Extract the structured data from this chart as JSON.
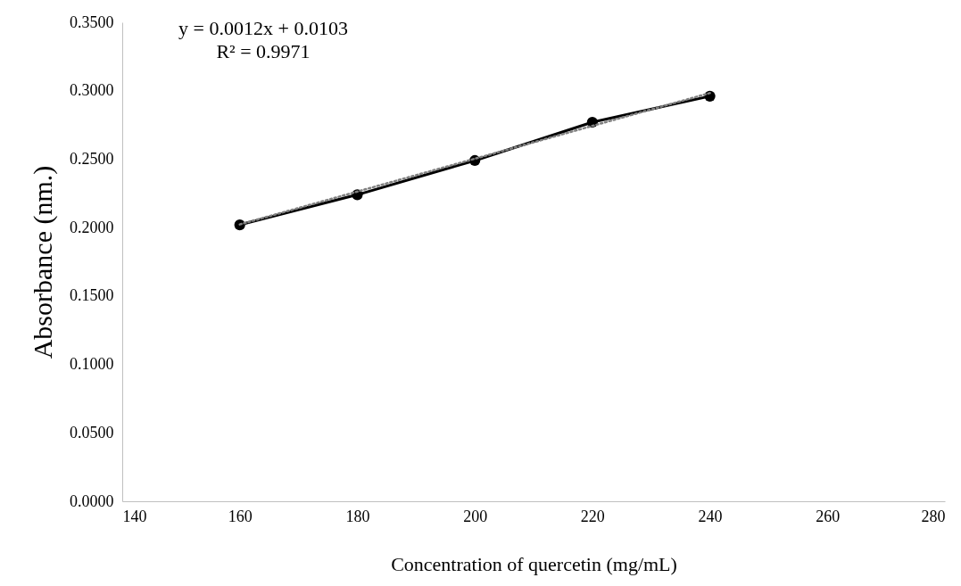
{
  "chart_data": {
    "type": "line",
    "xlabel": "Concentration of quercetin (mg/mL)",
    "ylabel": "Absorbance (nm.)",
    "annotations": [
      "y = 0.0012x + 0.0103",
      "R² = 0.9971"
    ],
    "x": [
      160,
      180,
      200,
      220,
      240
    ],
    "series": [
      {
        "color": "#000000",
        "values": [
          0.202,
          0.224,
          0.249,
          0.277,
          0.296
        ],
        "marker": "circle",
        "line_style": "solid"
      },
      {
        "type": "line",
        "color": "#808080",
        "x": [
          160,
          240
        ],
        "values": [
          0.2023,
          0.2983
        ],
        "marker": "none",
        "line_style": "dotted"
      }
    ],
    "xlim": [
      140,
      280
    ],
    "xticks": [
      140,
      160,
      180,
      200,
      220,
      240,
      260,
      280
    ],
    "ylim": [
      0,
      0.35
    ],
    "yticks": [
      {
        "value": 0,
        "label": "0.0000"
      },
      {
        "value": 0.05,
        "label": "0.0500"
      },
      {
        "value": 0.1,
        "label": "0.1000"
      },
      {
        "value": 0.15,
        "label": "0.1500"
      },
      {
        "value": 0.2,
        "label": "0.2000"
      },
      {
        "value": 0.25,
        "label": "0.2500"
      },
      {
        "value": 0.3,
        "label": "0.3000"
      },
      {
        "value": 0.35,
        "label": "0.3500"
      }
    ],
    "grid": false
  }
}
